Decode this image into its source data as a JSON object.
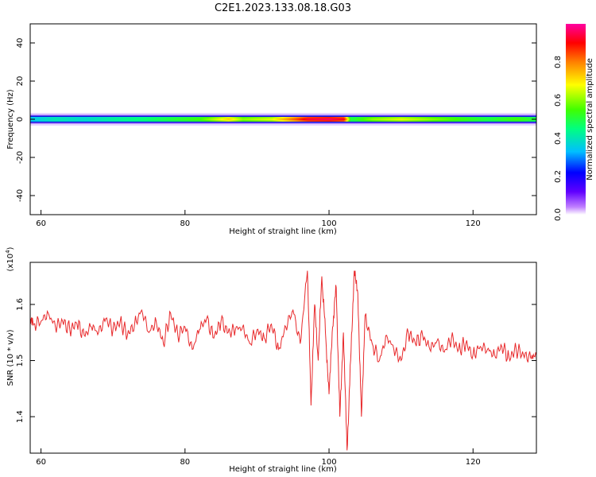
{
  "title": "C2E1.2023.133.08.18.G03",
  "colors": {
    "snr_line": "#e8292b",
    "axis": "#000000",
    "colormap": [
      "#ffffff",
      "#8000ff",
      "#0000ff",
      "#00bfff",
      "#00ff80",
      "#40ff00",
      "#ffff00",
      "#ff8000",
      "#ff0000",
      "#ff00a0"
    ]
  },
  "spectrogram": {
    "type": "heatmap",
    "xlabel": "Height of straight line (km)",
    "ylabel": "Frequency (Hz)",
    "xlim": [
      58.5,
      128.8
    ],
    "ylim": [
      -50,
      50
    ],
    "xticks": [
      60,
      80,
      100,
      120
    ],
    "yticks": [
      40,
      20,
      0,
      -20,
      -40
    ],
    "colorbar": {
      "label": "Normalized spectral amplitude",
      "range": [
        0.0,
        1.0
      ],
      "ticks": [
        "0.0",
        "0.2",
        "0.4",
        "0.6",
        "0.8"
      ]
    },
    "band": {
      "center_hz": 0,
      "amplitude_profile": [
        [
          58.5,
          0.35
        ],
        [
          62,
          0.4
        ],
        [
          66,
          0.38
        ],
        [
          70,
          0.42
        ],
        [
          74,
          0.45
        ],
        [
          78,
          0.5
        ],
        [
          82,
          0.55
        ],
        [
          86,
          0.7
        ],
        [
          88,
          0.6
        ],
        [
          92,
          0.65
        ],
        [
          95,
          0.8
        ],
        [
          97,
          0.92
        ],
        [
          100,
          0.95
        ],
        [
          102,
          0.9
        ],
        [
          103,
          0.5
        ],
        [
          106,
          0.6
        ],
        [
          110,
          0.65
        ],
        [
          114,
          0.6
        ],
        [
          118,
          0.55
        ],
        [
          122,
          0.5
        ],
        [
          126,
          0.55
        ],
        [
          128.8,
          0.5
        ]
      ]
    }
  },
  "snr": {
    "type": "line",
    "xlabel": "Height of straight line (km)",
    "ylabel": "SNR (10 * v/v)",
    "scale_label": "(x10",
    "scale_exp": "4",
    "scale_close": ")",
    "xlim": [
      58.5,
      128.8
    ],
    "ylim": [
      1.335,
      1.675
    ],
    "xticks": [
      60,
      80,
      100,
      120
    ],
    "yticks": [
      1.4,
      1.5,
      1.6
    ],
    "ytick_labels": [
      "1.4",
      "1.5",
      "1.6"
    ],
    "series": {
      "x": [
        58.5,
        59,
        60,
        61,
        62,
        63,
        64,
        65,
        66,
        67,
        68,
        69,
        70,
        71,
        72,
        73,
        74,
        75,
        76,
        77,
        78,
        79,
        80,
        81,
        82,
        83,
        84,
        85,
        86,
        87,
        88,
        89,
        90,
        91,
        92,
        93,
        94,
        95,
        96,
        97,
        97.5,
        98,
        98.5,
        99,
        99.5,
        100,
        100.5,
        101,
        101.5,
        102,
        102.5,
        103,
        103.5,
        104,
        104.5,
        105,
        106,
        107,
        108,
        109,
        110,
        111,
        112,
        113,
        114,
        115,
        116,
        117,
        118,
        119,
        120,
        121,
        122,
        123,
        124,
        125,
        126,
        127,
        128,
        128.8
      ],
      "y": [
        1.575,
        1.565,
        1.57,
        1.585,
        1.56,
        1.57,
        1.555,
        1.565,
        1.545,
        1.56,
        1.55,
        1.575,
        1.555,
        1.57,
        1.545,
        1.565,
        1.59,
        1.55,
        1.57,
        1.53,
        1.585,
        1.545,
        1.56,
        1.52,
        1.555,
        1.575,
        1.54,
        1.57,
        1.55,
        1.555,
        1.56,
        1.53,
        1.555,
        1.54,
        1.565,
        1.52,
        1.56,
        1.59,
        1.53,
        1.66,
        1.42,
        1.6,
        1.5,
        1.65,
        1.55,
        1.44,
        1.56,
        1.63,
        1.4,
        1.55,
        1.34,
        1.5,
        1.66,
        1.62,
        1.4,
        1.58,
        1.53,
        1.5,
        1.545,
        1.52,
        1.5,
        1.55,
        1.53,
        1.545,
        1.52,
        1.535,
        1.515,
        1.54,
        1.52,
        1.53,
        1.51,
        1.525,
        1.52,
        1.51,
        1.525,
        1.505,
        1.52,
        1.51,
        1.505,
        1.51
      ]
    }
  }
}
